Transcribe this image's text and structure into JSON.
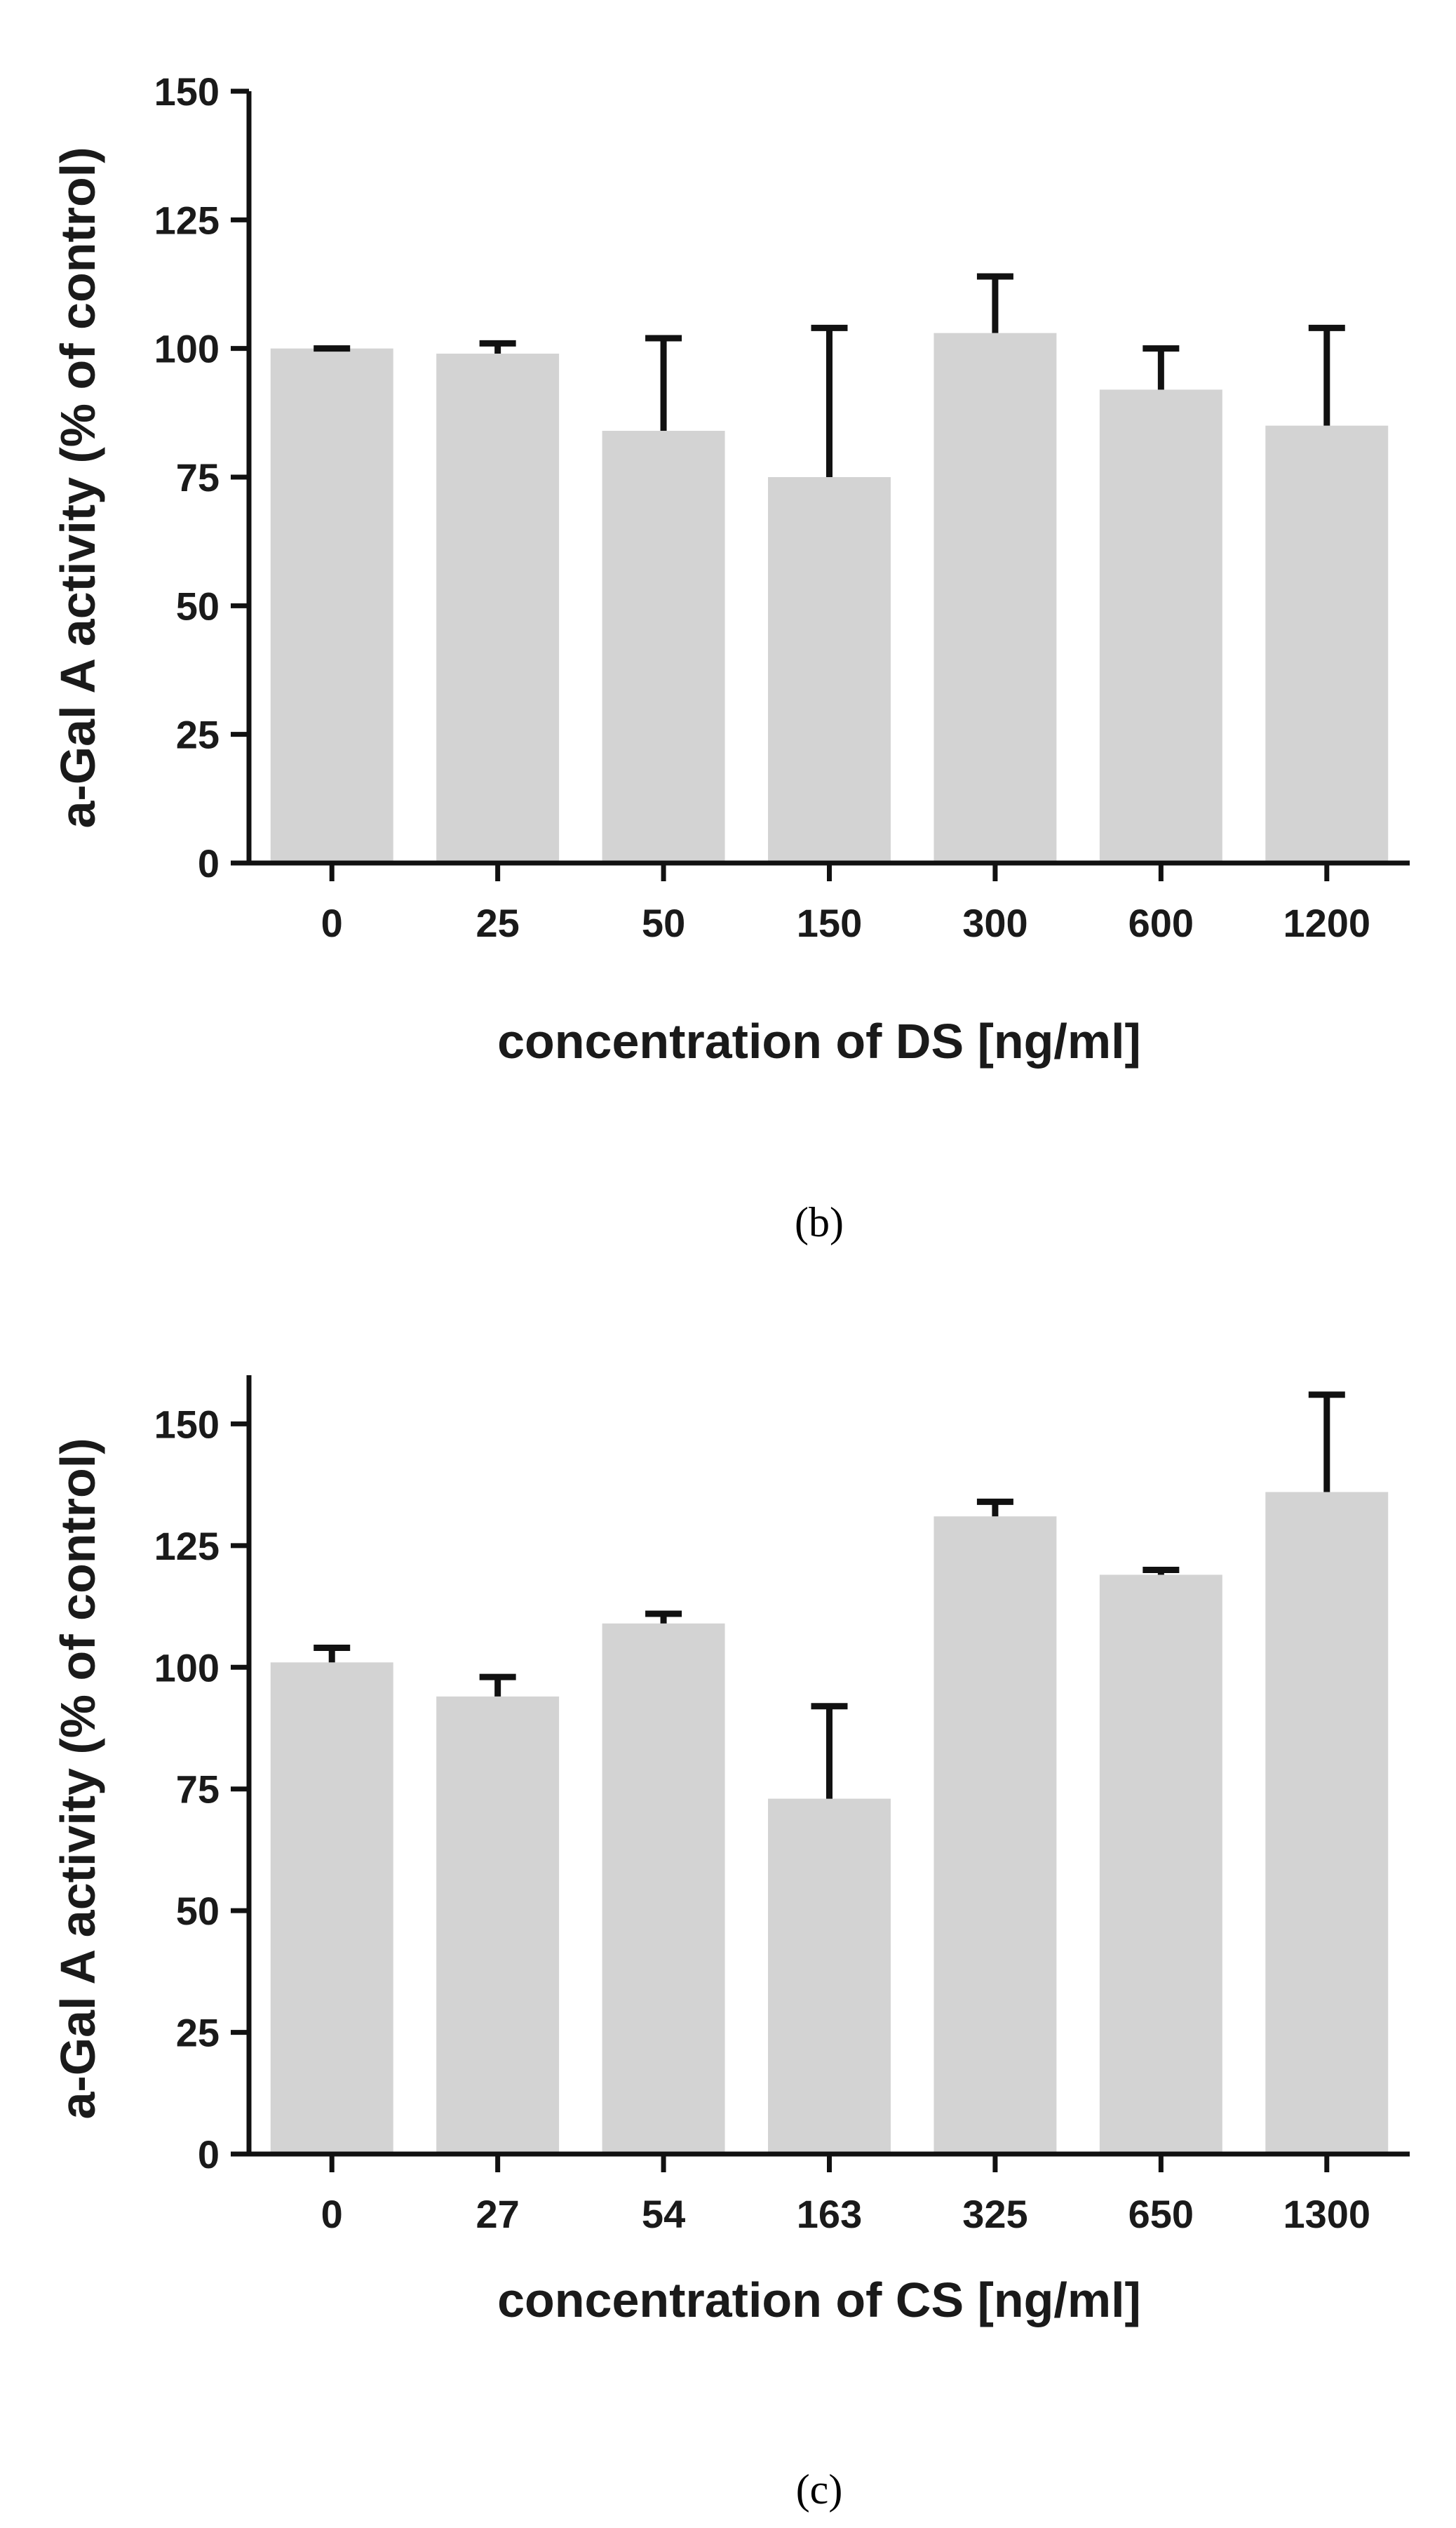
{
  "colors": {
    "bar": "#d3d3d3",
    "axis": "#111111",
    "error": "#111111"
  },
  "chart_data": [
    {
      "type": "bar",
      "panel": "b",
      "panel_label": "(b)",
      "title": "",
      "xlabel": "concentration of DS [ng/ml]",
      "ylabel": "a-Gal A activity (% of control)",
      "ylim": [
        0,
        150
      ],
      "yticks": [
        "0",
        "25",
        "50",
        "75",
        "100",
        "125",
        "150"
      ],
      "categories": [
        "0",
        "25",
        "50",
        "150",
        "300",
        "600",
        "1200"
      ],
      "values": [
        100,
        99,
        84,
        75,
        103,
        92,
        85
      ],
      "error_upper": [
        100,
        101,
        102,
        104,
        114,
        100,
        104
      ]
    },
    {
      "type": "bar",
      "panel": "c",
      "panel_label": "(c)",
      "title": "",
      "xlabel": "concentration of CS [ng/ml]",
      "ylabel": "a-Gal A activity (% of control)",
      "ylim": [
        0,
        160
      ],
      "yticks": [
        "0",
        "25",
        "50",
        "75",
        "100",
        "125",
        "150"
      ],
      "categories": [
        "0",
        "27",
        "54",
        "163",
        "325",
        "650",
        "1300"
      ],
      "values": [
        101,
        94,
        109,
        73,
        131,
        119,
        136
      ],
      "error_upper": [
        104,
        98,
        111,
        92,
        134,
        120,
        156
      ]
    }
  ]
}
